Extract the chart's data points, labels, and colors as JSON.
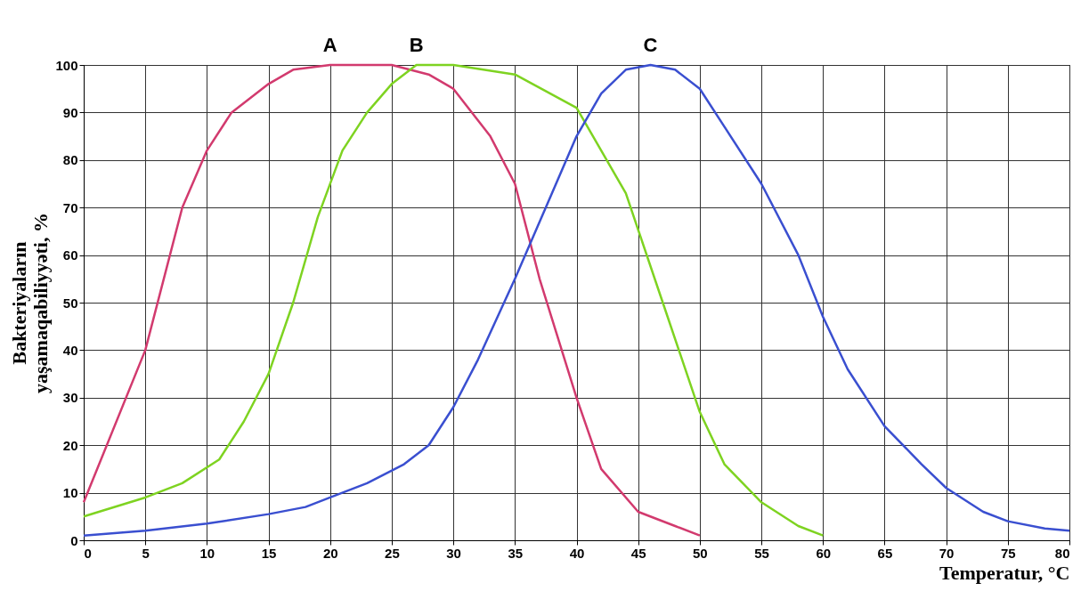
{
  "chart_data": {
    "type": "line",
    "ylabel": "Bakteriyaların yaşamaqabiliyyəti, %",
    "xlabel": "Temperatur, °C",
    "xlim": [
      0,
      80
    ],
    "xticks": [
      0,
      5,
      10,
      15,
      20,
      25,
      30,
      35,
      40,
      45,
      50,
      55,
      60,
      65,
      70,
      75,
      80
    ],
    "ylim": [
      0,
      100
    ],
    "yticks": [
      0,
      10,
      20,
      30,
      40,
      50,
      60,
      70,
      80,
      90,
      100
    ],
    "grid": true,
    "marker": "none",
    "line_style": "solid",
    "series": [
      {
        "name": "A",
        "color": "#d23a6e",
        "x": [
          0,
          5,
          8,
          10,
          12,
          15,
          17,
          20,
          25,
          28,
          30,
          33,
          35,
          37,
          40,
          42,
          45,
          48,
          50
        ],
        "values": [
          8,
          40,
          70,
          82,
          90,
          96,
          99,
          100,
          100,
          98,
          95,
          85,
          75,
          55,
          30,
          15,
          6,
          3,
          1
        ]
      },
      {
        "name": "B",
        "color": "#7ed321",
        "x": [
          0,
          5,
          8,
          11,
          13,
          15,
          17,
          19,
          21,
          23,
          25,
          27,
          30,
          35,
          40,
          44,
          47,
          50,
          52,
          55,
          58,
          60
        ],
        "values": [
          5,
          9,
          12,
          17,
          25,
          35,
          50,
          68,
          82,
          90,
          96,
          100,
          100,
          98,
          91,
          73,
          50,
          27,
          16,
          8,
          3,
          1
        ]
      },
      {
        "name": "C",
        "color": "#3a4fd0",
        "x": [
          0,
          5,
          10,
          15,
          18,
          20,
          23,
          26,
          28,
          30,
          32,
          35,
          38,
          40,
          42,
          44,
          46,
          48,
          50,
          52,
          55,
          58,
          60,
          62,
          65,
          68,
          70,
          73,
          75,
          78,
          80
        ],
        "values": [
          1,
          2,
          3.5,
          5.5,
          7,
          9,
          12,
          16,
          20,
          28,
          38,
          55,
          73,
          85,
          94,
          99,
          100,
          99,
          95,
          87,
          75,
          60,
          47,
          36,
          24,
          16,
          11,
          6,
          4,
          2.5,
          2
        ]
      }
    ]
  }
}
